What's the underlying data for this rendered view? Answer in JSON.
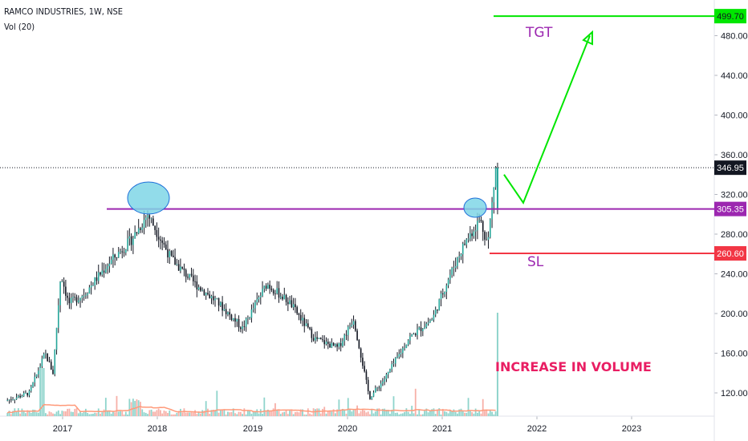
{
  "header": {
    "symbol_line": "RAMCO INDUSTRIES, 1W, NSE",
    "indicator": "Vol (20)"
  },
  "annotations": {
    "tgt": "TGT",
    "sl": "SL",
    "volume_note": "INCREASE IN VOLUME"
  },
  "colors": {
    "up": "#26a69a",
    "down": "#131722",
    "candle": "#131722",
    "resistance": "#9c27b0",
    "target": "#00e600",
    "stoploss": "#f23645",
    "highlight_fill": "#7fd6e6",
    "volume_up": "#8fd4cc",
    "volume_down": "#f7b0a8",
    "volume_ma": "#ff9a7a",
    "text_purple": "#9c27b0",
    "text_magenta": "#e91e63"
  },
  "chart_data": {
    "type": "candlestick",
    "title": "RAMCO INDUSTRIES, 1W, NSE",
    "x_axis": {
      "ticks": [
        "2017",
        "2018",
        "2019",
        "2020",
        "2021",
        "2022",
        "2023"
      ]
    },
    "y_axis": {
      "ticks": [
        "120.00",
        "160.00",
        "200.00",
        "240.00",
        "280.00",
        "320.00",
        "360.00",
        "400.00",
        "440.00",
        "480.00"
      ],
      "ylim": [
        95,
        515
      ]
    },
    "levels": [
      {
        "label": "499.70",
        "value": 499.7,
        "role": "target"
      },
      {
        "label": "346.95",
        "value": 346.95,
        "role": "last_price"
      },
      {
        "label": "305.35",
        "value": 305.35,
        "role": "resistance"
      },
      {
        "label": "260.60",
        "value": 260.6,
        "role": "stoploss"
      }
    ],
    "price_path": [
      [
        "2016-06",
        112
      ],
      [
        "2016-09",
        120
      ],
      [
        "2016-11",
        160
      ],
      [
        "2016-12",
        140
      ],
      [
        "2017-01",
        240
      ],
      [
        "2017-02",
        210
      ],
      [
        "2017-04",
        220
      ],
      [
        "2017-07",
        250
      ],
      [
        "2017-10",
        275
      ],
      [
        "2017-12",
        300
      ],
      [
        "2018-03",
        255
      ],
      [
        "2018-06",
        230
      ],
      [
        "2018-09",
        210
      ],
      [
        "2018-12",
        185
      ],
      [
        "2019-03",
        230
      ],
      [
        "2019-06",
        210
      ],
      [
        "2019-09",
        175
      ],
      [
        "2019-12",
        165
      ],
      [
        "2020-02",
        195
      ],
      [
        "2020-04",
        115
      ],
      [
        "2020-06",
        135
      ],
      [
        "2020-09",
        175
      ],
      [
        "2020-12",
        195
      ],
      [
        "2021-02",
        235
      ],
      [
        "2021-04",
        270
      ],
      [
        "2021-06",
        295
      ],
      [
        "2021-07",
        270
      ],
      [
        "2021-08",
        346.95
      ]
    ],
    "volume_spike": {
      "date": "2021-08",
      "relative": 1.0
    },
    "projection": [
      [
        "2021-08",
        340
      ],
      [
        "2021-11",
        310
      ],
      [
        "2022-06",
        480
      ]
    ]
  }
}
